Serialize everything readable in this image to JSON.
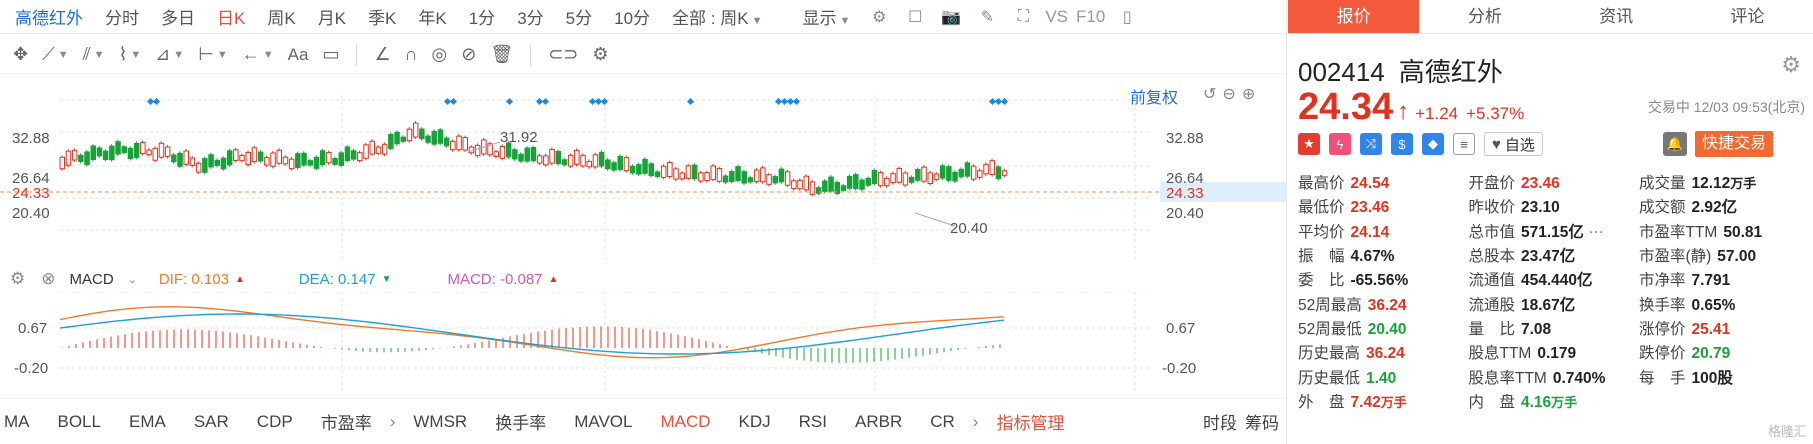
{
  "period_bar": {
    "stock_name": "高德红外",
    "periods": [
      "分时",
      "多日",
      "日K",
      "周K",
      "月K",
      "季K",
      "年K",
      "1分",
      "3分",
      "5分",
      "10分"
    ],
    "active_period": "日K",
    "overlay_select": "全部 : 周K",
    "display_label": "显示",
    "vs_label": "VS",
    "f10_label": "F10"
  },
  "tool_bar": {
    "text_tool": "Aa"
  },
  "chart": {
    "adjust_label": "前复权",
    "y_labels_left": [
      "32.88",
      "26.64",
      "24.33",
      "20.40"
    ],
    "y_labels_right": [
      "32.88",
      "26.64",
      "24.33",
      "20.40"
    ],
    "high_annotation": "31.92",
    "low_annotation": "20.40",
    "current_price_tag": "24.33"
  },
  "macd": {
    "label": "MACD",
    "dif_label": "DIF: 0.103",
    "dea_label": "DEA: 0.147",
    "macd_label": "MACD: -0.087",
    "y_labels_left": [
      "0.67",
      "-0.20"
    ],
    "y_labels_right": [
      "0.67",
      "-0.20"
    ]
  },
  "indicators": {
    "group_a": [
      "MA",
      "BOLL",
      "EMA",
      "SAR",
      "CDP",
      "市盈率"
    ],
    "group_b": [
      "WMSR",
      "换手率",
      "MAVOL",
      "MACD",
      "KDJ",
      "RSI",
      "ARBR",
      "CR"
    ],
    "active": "MACD",
    "manage_label": "指标管理",
    "right_items": [
      "时段",
      "筹码"
    ]
  },
  "right_panel": {
    "tabs": [
      "报价",
      "分析",
      "资讯",
      "评论"
    ],
    "active_tab": "报价",
    "code": "002414",
    "name": "高德红外",
    "price": "24.34",
    "change": "+1.24",
    "change_pct": "+5.37%",
    "status": "交易中 12/03 09:53(北京)",
    "watch_label": "自选",
    "quick_trade": "快捷交易",
    "stats": [
      [
        {
          "label": "最高价",
          "value": "24.54",
          "color": "red"
        },
        {
          "label": "开盘价",
          "value": "23.46",
          "color": "red"
        },
        {
          "label": "成交量",
          "value": "12.12",
          "unit": "万手",
          "color": ""
        }
      ],
      [
        {
          "label": "最低价",
          "value": "23.46",
          "color": "red"
        },
        {
          "label": "昨收价",
          "value": "23.10",
          "color": ""
        },
        {
          "label": "成交额",
          "value": "2.92亿",
          "color": ""
        }
      ],
      [
        {
          "label": "平均价",
          "value": "24.14",
          "color": "red"
        },
        {
          "label": "总市值",
          "value": "571.15亿",
          "color": ""
        },
        {
          "label": "市盈率TTM",
          "value": "50.81",
          "color": ""
        }
      ],
      [
        {
          "label": "振　幅",
          "value": "4.67%",
          "color": ""
        },
        {
          "label": "总股本",
          "value": "23.47亿",
          "color": ""
        },
        {
          "label": "市盈率(静)",
          "value": "57.00",
          "color": ""
        }
      ],
      [
        {
          "label": "委　比",
          "value": "-65.56%",
          "color": ""
        },
        {
          "label": "流通值",
          "value": "454.440亿",
          "color": ""
        },
        {
          "label": "市净率",
          "value": "7.791",
          "color": ""
        }
      ],
      [
        {
          "label": "52周最高",
          "value": "36.24",
          "color": "red"
        },
        {
          "label": "流通股",
          "value": "18.67亿",
          "color": ""
        },
        {
          "label": "换手率",
          "value": "0.65%",
          "color": ""
        }
      ],
      [
        {
          "label": "52周最低",
          "value": "20.40",
          "color": "green"
        },
        {
          "label": "量　比",
          "value": "7.08",
          "color": ""
        },
        {
          "label": "涨停价",
          "value": "25.41",
          "color": "red"
        }
      ],
      [
        {
          "label": "历史最高",
          "value": "36.24",
          "color": "red"
        },
        {
          "label": "股息TTM",
          "value": "0.179",
          "color": ""
        },
        {
          "label": "跌停价",
          "value": "20.79",
          "color": "green"
        }
      ],
      [
        {
          "label": "历史最低",
          "value": "1.40",
          "color": "green"
        },
        {
          "label": "股息率TTM",
          "value": "0.740%",
          "color": ""
        },
        {
          "label": "每　手",
          "value": "100股",
          "color": ""
        }
      ],
      [
        {
          "label": "外　盘",
          "value": "7.42",
          "unit": "万手",
          "color": "red"
        },
        {
          "label": "内　盘",
          "value": "4.16",
          "unit": "万手",
          "color": "green"
        },
        {
          "label": "",
          "value": "",
          "color": ""
        }
      ]
    ],
    "watermark": "格隆汇"
  },
  "colors": {
    "up": "#e0331f",
    "down": "#18a23a",
    "accent": "#f25a3b",
    "link": "#1f6fd1"
  }
}
